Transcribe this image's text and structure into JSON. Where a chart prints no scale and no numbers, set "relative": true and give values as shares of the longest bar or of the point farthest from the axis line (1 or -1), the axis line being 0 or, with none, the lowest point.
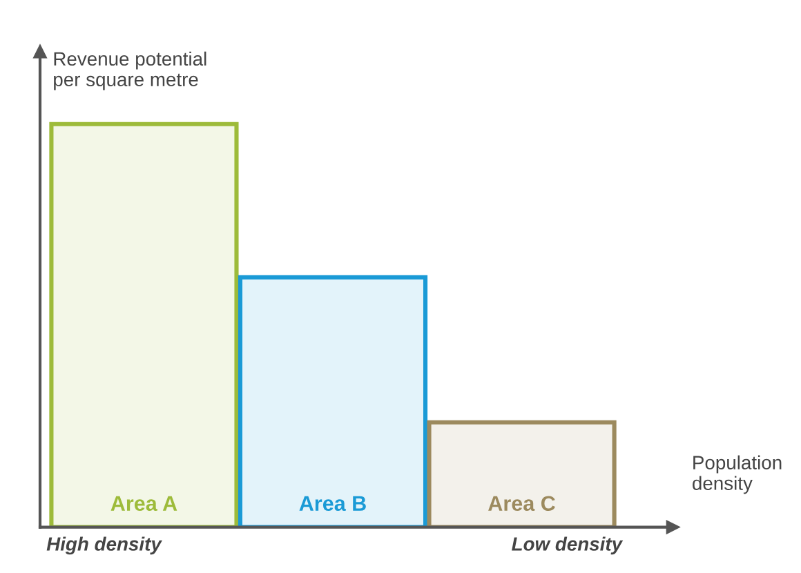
{
  "chart_data": {
    "type": "bar",
    "relative": true,
    "categories": [
      "Area A",
      "Area B",
      "Area C"
    ],
    "values": [
      1,
      0.62,
      0.26
    ],
    "colors": [
      "#9dbb3a",
      "#1a9ad6",
      "#9c8a5e"
    ],
    "xlabel": "Population density",
    "ylabel": "Revenue potential\nper square metre",
    "annotations": [
      "High density",
      "Low density"
    ],
    "legend": false
  }
}
